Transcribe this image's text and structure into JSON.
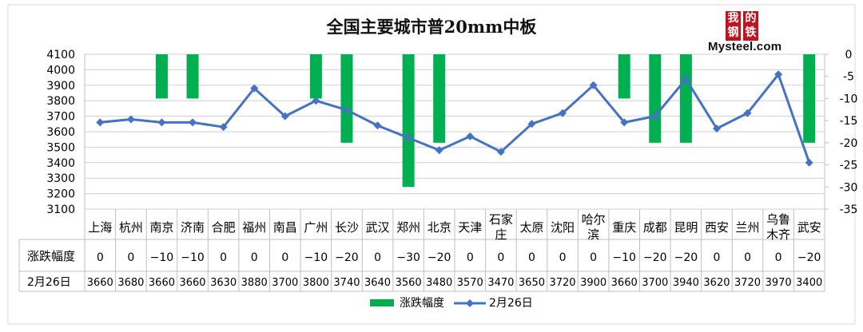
{
  "chart_data": {
    "type": "bar+line",
    "title": "全国主要城市普20mm中板",
    "categories": [
      "上海",
      "杭州",
      "南京",
      "济南",
      "合肥",
      "福州",
      "南昌",
      "广州",
      "长沙",
      "武汉",
      "郑州",
      "北京",
      "天津",
      "石家庄",
      "太原",
      "沈阳",
      "哈尔滨",
      "重庆",
      "成都",
      "昆明",
      "西安",
      "兰州",
      "乌鲁木齐",
      "武安"
    ],
    "category_lines": [
      [
        "上海"
      ],
      [
        "杭州"
      ],
      [
        "南京"
      ],
      [
        "济南"
      ],
      [
        "合肥"
      ],
      [
        "福州"
      ],
      [
        "南昌"
      ],
      [
        "广州"
      ],
      [
        "长沙"
      ],
      [
        "武汉"
      ],
      [
        "郑州"
      ],
      [
        "北京"
      ],
      [
        "天津"
      ],
      [
        "石家",
        "庄"
      ],
      [
        "太原"
      ],
      [
        "沈阳"
      ],
      [
        "哈尔",
        "滨"
      ],
      [
        "重庆"
      ],
      [
        "成都"
      ],
      [
        "昆明"
      ],
      [
        "西安"
      ],
      [
        "兰州"
      ],
      [
        "乌鲁",
        "木齐"
      ],
      [
        "武安"
      ]
    ],
    "series": [
      {
        "name": "涨跌幅度",
        "type": "bar",
        "axis": "right",
        "color": "#00b050",
        "values": [
          0,
          0,
          -10,
          -10,
          0,
          0,
          0,
          -10,
          -20,
          0,
          -30,
          -20,
          0,
          0,
          0,
          0,
          0,
          -10,
          -20,
          -20,
          0,
          0,
          0,
          -20
        ],
        "labels": [
          "0",
          "0",
          "−10",
          "−10",
          "0",
          "0",
          "0",
          "−10",
          "−20",
          "0",
          "−30",
          "−20",
          "0",
          "0",
          "0",
          "0",
          "0",
          "−10",
          "−20",
          "−20",
          "0",
          "0",
          "0",
          "−20"
        ]
      },
      {
        "name": "2月26日",
        "type": "line",
        "axis": "left",
        "color": "#4472c4",
        "values": [
          3660,
          3680,
          3660,
          3660,
          3630,
          3880,
          3700,
          3800,
          3740,
          3640,
          3560,
          3480,
          3570,
          3470,
          3650,
          3720,
          3900,
          3660,
          3700,
          3940,
          3620,
          3720,
          3970,
          3400
        ]
      }
    ],
    "y_left": {
      "min": 3100,
      "max": 4100,
      "ticks": [
        4100,
        4000,
        3900,
        3800,
        3700,
        3600,
        3500,
        3400,
        3300,
        3200,
        3100
      ]
    },
    "y_right": {
      "min": -35,
      "max": 0,
      "ticks": [
        0,
        -5,
        -10,
        -15,
        -20,
        -25,
        -30,
        -35
      ]
    },
    "grid": true,
    "legend": "bottom",
    "data_table": true
  },
  "legend": {
    "bar_label": "涨跌幅度",
    "line_label": "2月26日"
  },
  "logo": {
    "chars": [
      "我",
      "的",
      "钢",
      "铁"
    ],
    "wordmark": "Mysteel.com"
  }
}
